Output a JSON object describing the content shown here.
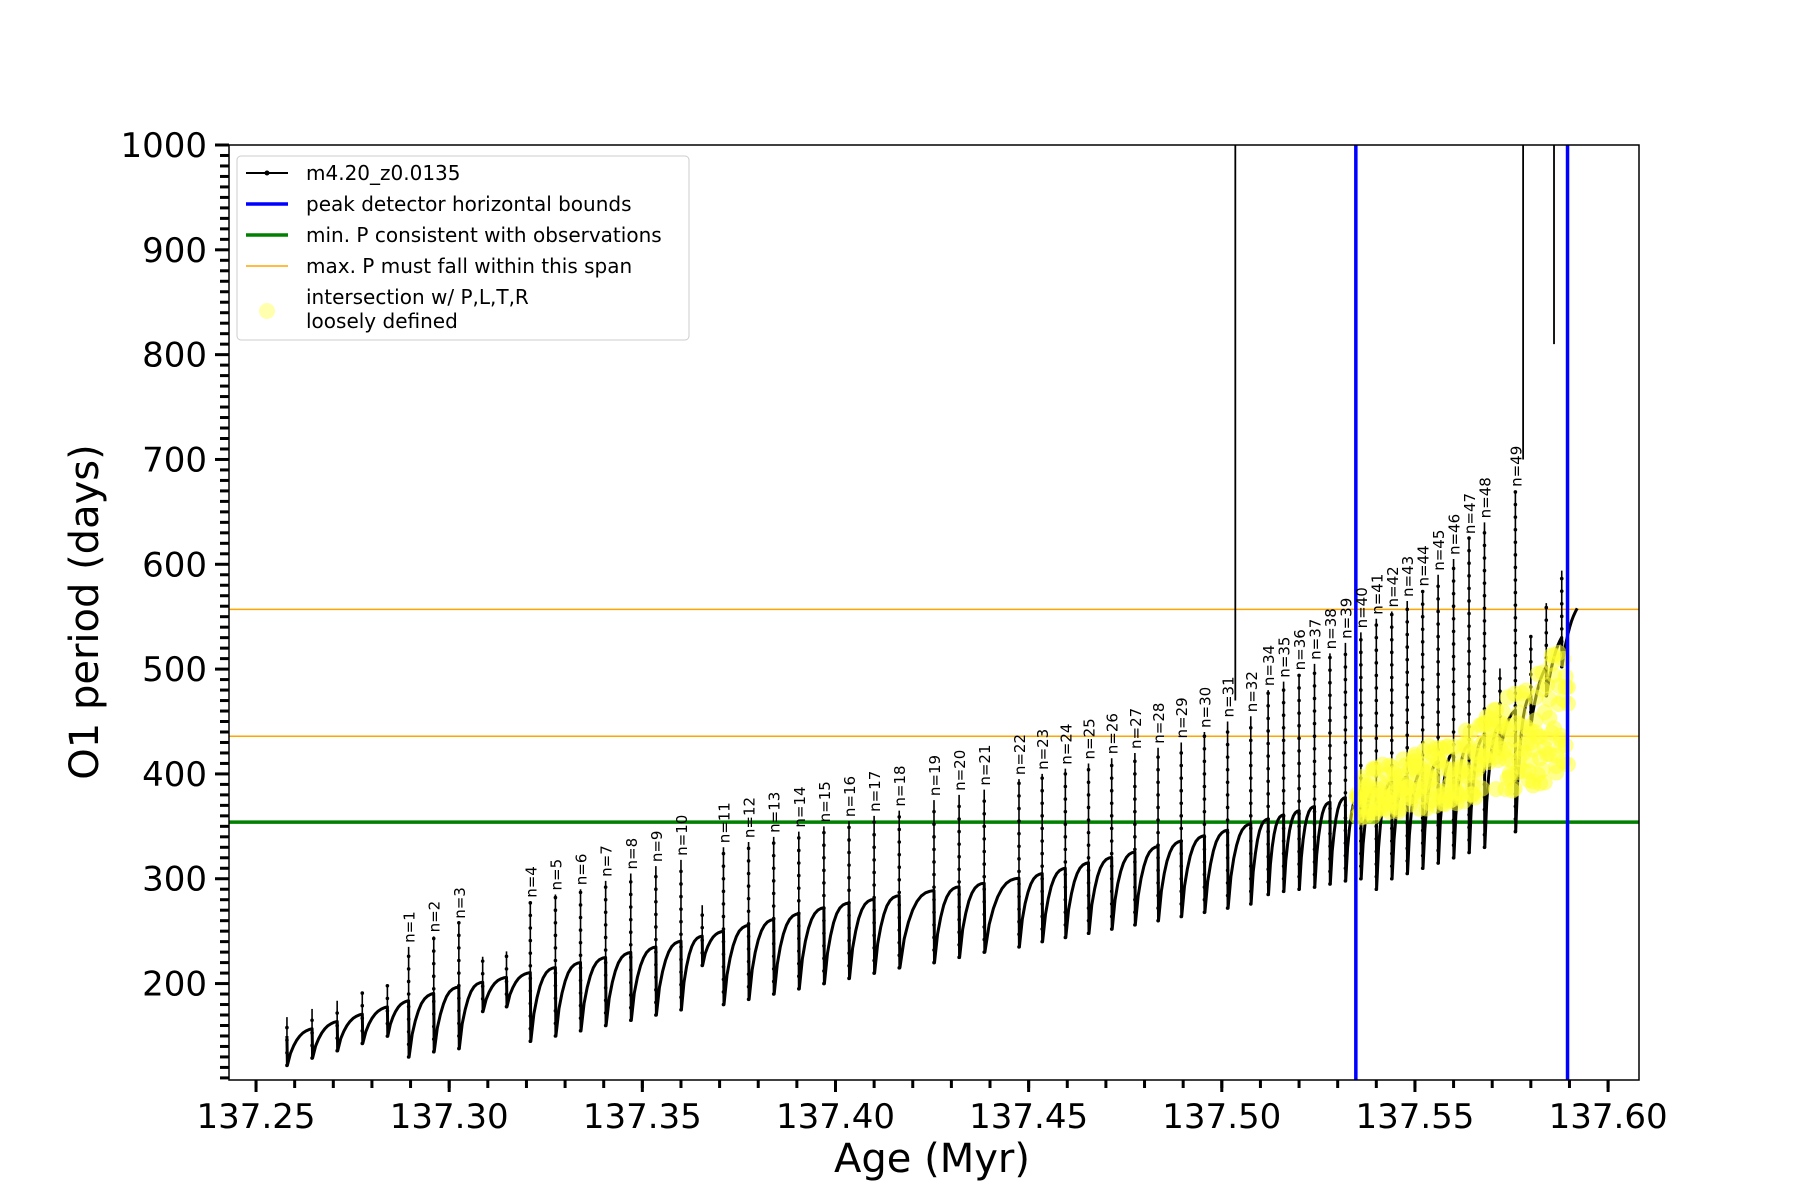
{
  "chart_data": {
    "type": "line",
    "xlabel": "Age (Myr)",
    "ylabel": "O1 period (days)",
    "xlim": [
      137.243,
      137.608
    ],
    "ylim": [
      108,
      1000
    ],
    "x_ticks": [
      "137.25",
      "137.30",
      "137.35",
      "137.40",
      "137.45",
      "137.50",
      "137.55",
      "137.60"
    ],
    "y_ticks": [
      "200",
      "300",
      "400",
      "500",
      "600",
      "700",
      "800",
      "900",
      "1000"
    ],
    "x_tick_values": [
      137.25,
      137.3,
      137.35,
      137.4,
      137.45,
      137.5,
      137.55,
      137.6
    ],
    "y_tick_values": [
      200,
      300,
      400,
      500,
      600,
      700,
      800,
      900,
      1000
    ],
    "grid": false,
    "legend_position": "top-left",
    "legend": [
      {
        "label": "m4.20_z0.0135",
        "style": "black line with dots",
        "color": "#000000"
      },
      {
        "label": "peak detector horizontal bounds",
        "style": "thick line",
        "color": "#0000ff"
      },
      {
        "label": "min. P consistent with observations",
        "style": "thick line",
        "color": "#008000"
      },
      {
        "label": "max. P must fall within this span",
        "style": "thin line",
        "color": "#ffa500"
      },
      {
        "label": "intersection w/ P,L,T,R",
        "label_line2": "loosely defined",
        "style": "marker",
        "color": "#ffff00"
      }
    ],
    "series": [
      {
        "name": "m4.20_z0.0135",
        "description_of_shape": "sawtooth pulses; baseline rising from ~150 to ~560 days",
        "baseline": {
          "x": [
            137.258,
            137.3,
            137.35,
            137.4,
            137.45,
            137.5,
            137.53,
            137.55,
            137.57,
            137.58,
            137.592
          ],
          "y": [
            150,
            195,
            232,
            275,
            302,
            345,
            375,
            400,
            440,
            475,
            558
          ]
        },
        "pulse_n": [
          1,
          2,
          3,
          4,
          5,
          6,
          7,
          8,
          9,
          10,
          11,
          12,
          13,
          14,
          15,
          16,
          17,
          18,
          19,
          20,
          21,
          22,
          23,
          24,
          25,
          26,
          27,
          28,
          29,
          30,
          31,
          32,
          34,
          35,
          36,
          37,
          38,
          39,
          40,
          41,
          42,
          43,
          44,
          45,
          46,
          47,
          48,
          49
        ],
        "pulse_x": [
          137.2895,
          137.296,
          137.3025,
          137.321,
          137.3275,
          137.334,
          137.3405,
          137.347,
          137.3535,
          137.36,
          137.371,
          137.3775,
          137.384,
          137.3905,
          137.397,
          137.4035,
          137.41,
          137.4165,
          137.4255,
          137.432,
          137.4385,
          137.4475,
          137.4535,
          137.4595,
          137.4655,
          137.4715,
          137.4775,
          137.4835,
          137.4895,
          137.4955,
          137.5015,
          137.5075,
          137.512,
          137.516,
          137.52,
          137.524,
          137.528,
          137.532,
          137.536,
          137.54,
          137.544,
          137.548,
          137.552,
          137.556,
          137.56,
          137.564,
          137.568,
          137.576
        ],
        "pulse_peak_y": [
          235,
          245,
          258,
          278,
          285,
          290,
          298,
          305,
          312,
          318,
          330,
          335,
          340,
          345,
          350,
          355,
          360,
          365,
          375,
          380,
          385,
          395,
          400,
          405,
          410,
          415,
          420,
          425,
          430,
          440,
          450,
          455,
          480,
          488,
          495,
          505,
          515,
          525,
          535,
          548,
          555,
          565,
          575,
          590,
          605,
          625,
          640,
          670
        ],
        "pulse_min_y": [
          130,
          135,
          138,
          145,
          150,
          155,
          160,
          165,
          170,
          175,
          180,
          185,
          190,
          195,
          200,
          205,
          210,
          215,
          220,
          225,
          230,
          235,
          240,
          244,
          248,
          252,
          256,
          260,
          264,
          268,
          272,
          276,
          285,
          288,
          290,
          292,
          295,
          298,
          300,
          290,
          300,
          305,
          310,
          315,
          320,
          325,
          330,
          345
        ]
      }
    ],
    "vertical_lines": [
      {
        "x": 137.5035,
        "color": "#000000",
        "y_from": 470,
        "y_to": 1000
      },
      {
        "x": 137.578,
        "color": "#000000",
        "y_from": 700,
        "y_to": 1000
      },
      {
        "x": 137.586,
        "color": "#000000",
        "y_from": 810,
        "y_to": 1000
      },
      {
        "x": 137.5347,
        "color": "#0000ff",
        "y_from": 108,
        "y_to": 1000
      },
      {
        "x": 137.5895,
        "color": "#0000ff",
        "y_from": 108,
        "y_to": 1000
      }
    ],
    "horizontal_lines": [
      {
        "y": 354,
        "color": "#008000",
        "label_ref": "min. P consistent with observations"
      },
      {
        "y": 436,
        "color": "#ffa500",
        "label_ref": "max. P must fall within this span"
      },
      {
        "y": 557,
        "color": "#ffa500",
        "label_ref": "max. P must fall within this span"
      }
    ],
    "intersection_region": {
      "x_range": [
        137.535,
        137.59
      ],
      "y_range": [
        350,
        520
      ]
    }
  }
}
